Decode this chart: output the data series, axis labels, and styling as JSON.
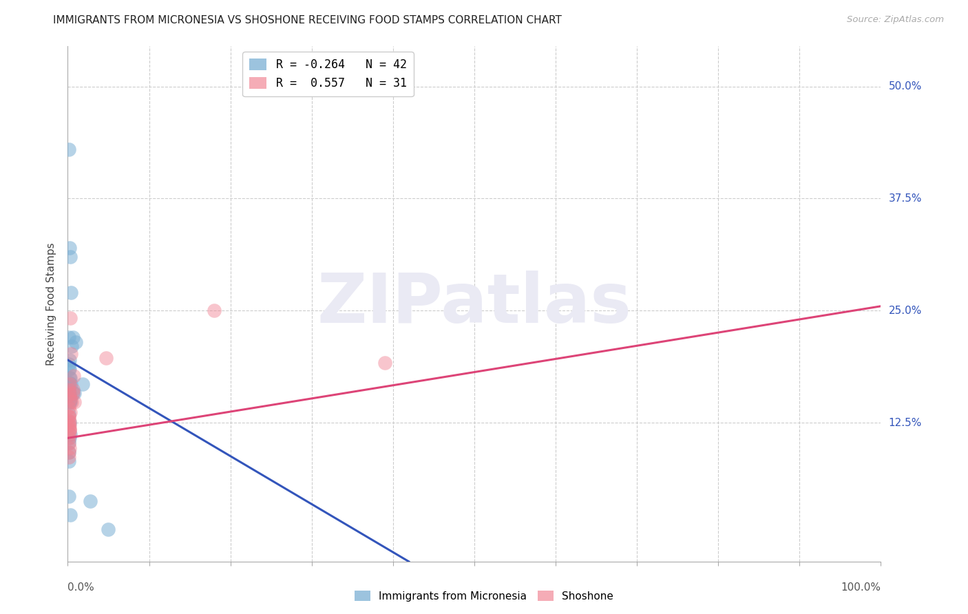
{
  "title": "IMMIGRANTS FROM MICRONESIA VS SHOSHONE RECEIVING FOOD STAMPS CORRELATION CHART",
  "source": "Source: ZipAtlas.com",
  "ylabel": "Receiving Food Stamps",
  "ytick_labels": [
    "12.5%",
    "25.0%",
    "37.5%",
    "50.0%"
  ],
  "ytick_values": [
    0.125,
    0.25,
    0.375,
    0.5
  ],
  "xtick_positions": [
    0.0,
    0.1,
    0.2,
    0.3,
    0.4,
    0.5,
    0.6,
    0.7,
    0.8,
    0.9,
    1.0
  ],
  "xmin": 0.0,
  "xmax": 1.0,
  "ymin": -0.03,
  "ymax": 0.545,
  "watermark_text": "ZIPatlas",
  "blue_scatter_x": [
    0.001,
    0.002,
    0.001,
    0.003,
    0.004,
    0.006,
    0.001,
    0.001,
    0.002,
    0.002,
    0.001,
    0.002,
    0.003,
    0.005,
    0.001,
    0.001,
    0.003,
    0.002,
    0.002,
    0.001,
    0.002,
    0.002,
    0.001,
    0.002,
    0.004,
    0.006,
    0.008,
    0.01,
    0.002,
    0.003,
    0.001,
    0.001,
    0.001,
    0.002,
    0.018,
    0.001,
    0.001,
    0.003,
    0.028,
    0.001,
    0.05,
    0.003
  ],
  "blue_scatter_y": [
    0.43,
    0.32,
    0.22,
    0.31,
    0.27,
    0.22,
    0.19,
    0.185,
    0.175,
    0.17,
    0.155,
    0.155,
    0.15,
    0.21,
    0.16,
    0.165,
    0.175,
    0.185,
    0.195,
    0.17,
    0.155,
    0.148,
    0.135,
    0.125,
    0.168,
    0.158,
    0.158,
    0.215,
    0.108,
    0.112,
    0.103,
    0.092,
    0.162,
    0.158,
    0.168,
    0.082,
    0.043,
    0.022,
    0.038,
    0.158,
    0.006,
    0.148
  ],
  "pink_scatter_x": [
    0.001,
    0.002,
    0.002,
    0.003,
    0.006,
    0.008,
    0.001,
    0.001,
    0.002,
    0.002,
    0.001,
    0.002,
    0.003,
    0.005,
    0.001,
    0.001,
    0.003,
    0.002,
    0.002,
    0.001,
    0.001,
    0.002,
    0.001,
    0.001,
    0.004,
    0.006,
    0.007,
    0.047,
    0.002,
    0.18,
    0.39
  ],
  "pink_scatter_y": [
    0.127,
    0.122,
    0.118,
    0.242,
    0.158,
    0.148,
    0.132,
    0.122,
    0.117,
    0.112,
    0.162,
    0.157,
    0.152,
    0.148,
    0.142,
    0.132,
    0.137,
    0.127,
    0.117,
    0.108,
    0.102,
    0.097,
    0.092,
    0.087,
    0.202,
    0.162,
    0.177,
    0.197,
    0.168,
    0.25,
    0.192
  ],
  "blue_line_x": [
    0.0,
    0.42
  ],
  "blue_line_y": [
    0.195,
    -0.03
  ],
  "pink_line_x": [
    0.0,
    1.0
  ],
  "pink_line_y": [
    0.108,
    0.255
  ],
  "blue_color": "#7bafd4",
  "pink_color": "#f08090",
  "blue_line_color": "#3355bb",
  "pink_line_color": "#dd4477",
  "grid_color": "#cccccc",
  "background_color": "#ffffff",
  "watermark_color": "#eaeaf4",
  "legend_blue_label": "R = -0.264   N = 42",
  "legend_pink_label": "R =  0.557   N = 31",
  "bottom_legend_blue": "Immigrants from Micronesia",
  "bottom_legend_pink": "Shoshone",
  "title_fontsize": 11,
  "ylabel_fontsize": 11,
  "tick_label_fontsize": 11,
  "legend_fontsize": 12
}
